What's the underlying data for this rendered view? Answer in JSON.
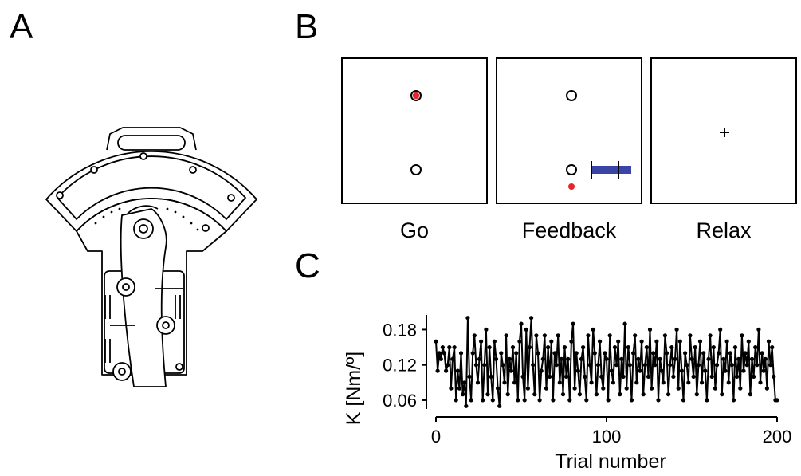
{
  "panels": {
    "a": {
      "letter": "A"
    },
    "b": {
      "letter": "B",
      "screens": [
        {
          "label": "Go"
        },
        {
          "label": "Feedback"
        },
        {
          "label": "Relax"
        }
      ]
    },
    "c": {
      "letter": "C"
    }
  },
  "colors": {
    "cursor_red": "#e8242c",
    "feedback_bar": "#3b45a6",
    "line": "#000000"
  },
  "chart_data": {
    "type": "line",
    "title": "",
    "xlabel": "Trial number",
    "ylabel": "K  [Nm/º]",
    "xlim": [
      0,
      200
    ],
    "ylim": [
      0.045,
      0.205
    ],
    "xticks": [
      0,
      100,
      200
    ],
    "yticks": [
      0.06,
      0.12,
      0.18
    ],
    "ytick_labels": [
      "0.06",
      "0.12",
      "0.18"
    ],
    "grid": false,
    "series": [
      {
        "values": [
          0.16,
          0.11,
          0.14,
          0.13,
          0.15,
          0.14,
          0.11,
          0.12,
          0.15,
          0.08,
          0.13,
          0.15,
          0.06,
          0.11,
          0.08,
          0.14,
          0.07,
          0.09,
          0.05,
          0.2,
          0.1,
          0.06,
          0.14,
          0.17,
          0.12,
          0.09,
          0.13,
          0.16,
          0.06,
          0.12,
          0.18,
          0.07,
          0.15,
          0.1,
          0.06,
          0.16,
          0.13,
          0.08,
          0.05,
          0.14,
          0.12,
          0.09,
          0.17,
          0.07,
          0.13,
          0.11,
          0.15,
          0.09,
          0.14,
          0.06,
          0.16,
          0.19,
          0.1,
          0.06,
          0.18,
          0.08,
          0.15,
          0.2,
          0.12,
          0.07,
          0.17,
          0.14,
          0.06,
          0.11,
          0.13,
          0.17,
          0.08,
          0.15,
          0.1,
          0.16,
          0.06,
          0.14,
          0.12,
          0.17,
          0.09,
          0.13,
          0.07,
          0.15,
          0.1,
          0.13,
          0.06,
          0.16,
          0.19,
          0.08,
          0.14,
          0.11,
          0.07,
          0.13,
          0.15,
          0.1,
          0.06,
          0.17,
          0.12,
          0.09,
          0.18,
          0.14,
          0.07,
          0.12,
          0.16,
          0.1,
          0.08,
          0.14,
          0.13,
          0.06,
          0.17,
          0.11,
          0.09,
          0.15,
          0.12,
          0.16,
          0.07,
          0.13,
          0.1,
          0.19,
          0.08,
          0.15,
          0.12,
          0.06,
          0.14,
          0.17,
          0.09,
          0.13,
          0.11,
          0.16,
          0.07,
          0.12,
          0.15,
          0.1,
          0.18,
          0.08,
          0.14,
          0.12,
          0.16,
          0.06,
          0.13,
          0.11,
          0.09,
          0.17,
          0.14,
          0.07,
          0.12,
          0.15,
          0.1,
          0.13,
          0.18,
          0.08,
          0.16,
          0.11,
          0.06,
          0.14,
          0.12,
          0.09,
          0.17,
          0.13,
          0.1,
          0.15,
          0.07,
          0.12,
          0.16,
          0.09,
          0.14,
          0.11,
          0.06,
          0.13,
          0.17,
          0.1,
          0.15,
          0.08,
          0.12,
          0.14,
          0.18,
          0.07,
          0.13,
          0.11,
          0.16,
          0.09,
          0.14,
          0.12,
          0.06,
          0.15,
          0.1,
          0.13,
          0.08,
          0.17,
          0.11,
          0.14,
          0.12,
          0.16,
          0.07,
          0.13,
          0.1,
          0.15,
          0.12,
          0.18,
          0.09,
          0.14,
          0.11,
          0.13,
          0.08,
          0.16,
          0.12,
          0.15,
          0.1,
          0.06,
          0.06
        ]
      }
    ]
  }
}
